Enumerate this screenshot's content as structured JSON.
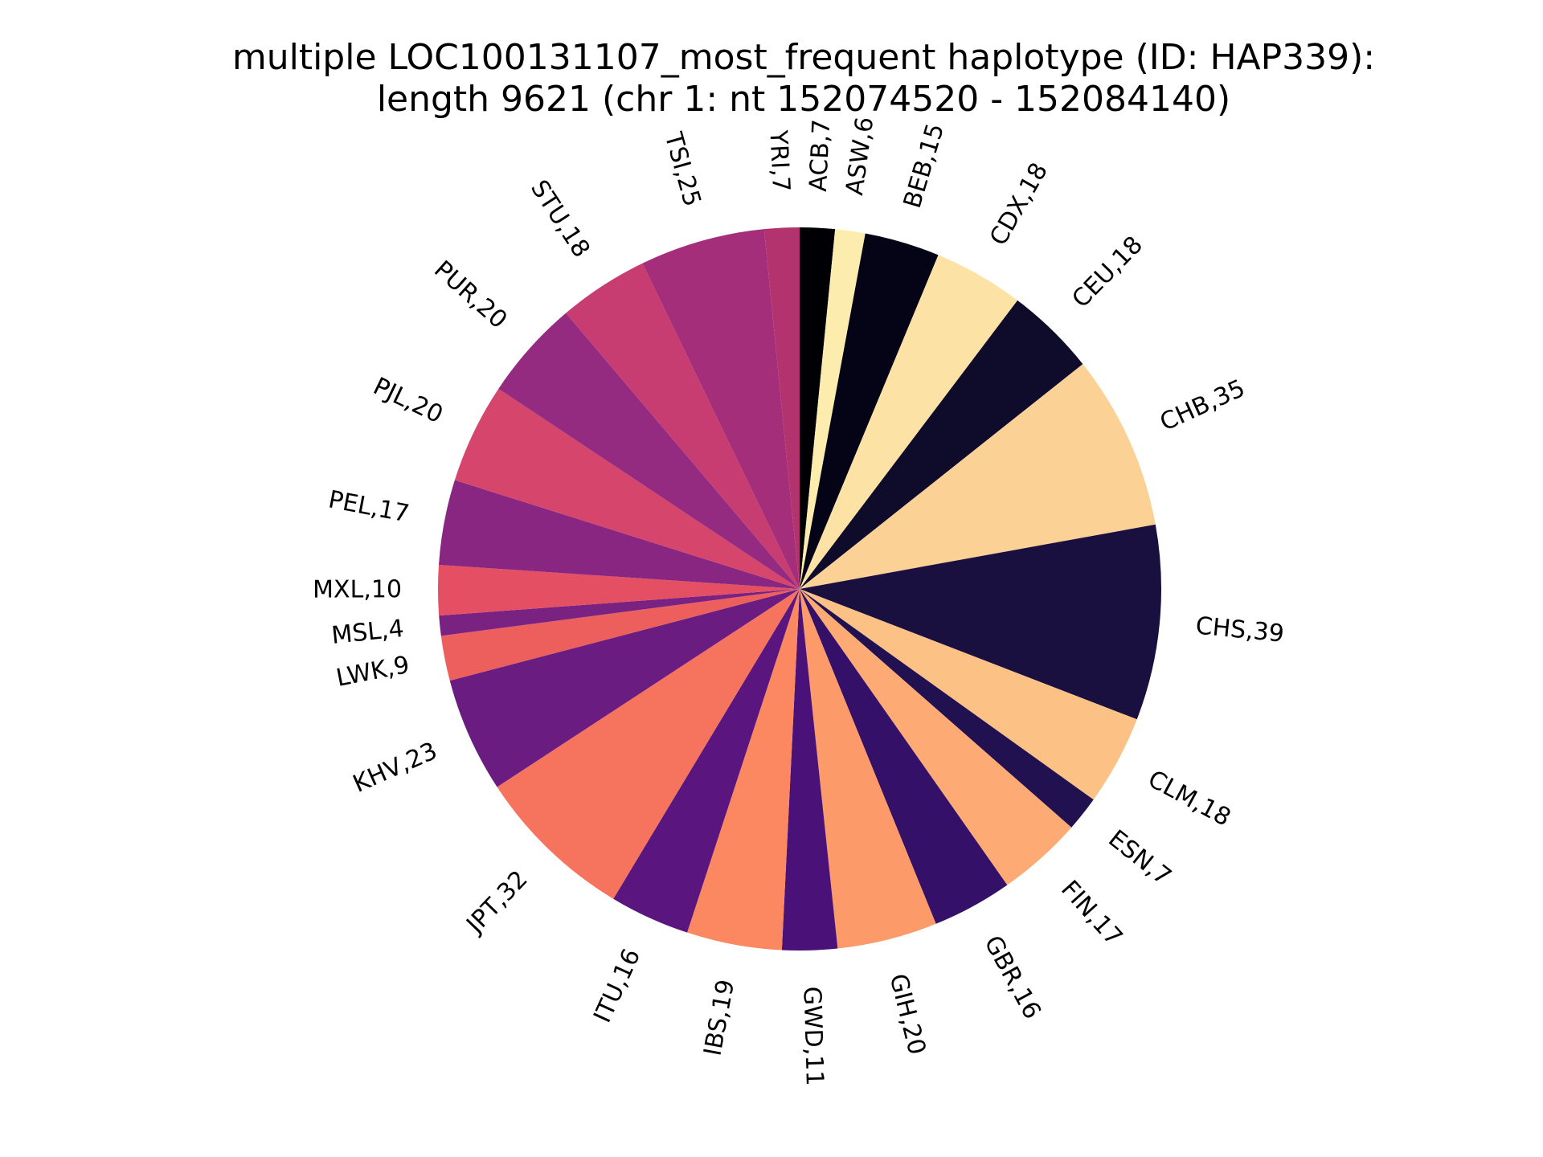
{
  "chart_data": {
    "type": "pie",
    "title_lines": [
      "multiple LOC100131107_most_frequent haplotype (ID: HAP339):",
      "length 9621 (chr 1: nt 152074520 - 152084140)"
    ],
    "start_direction": "top",
    "order": "clockwise",
    "slices": [
      {
        "label": "ACB,7",
        "name": "ACB",
        "value": 7,
        "color": "#000004"
      },
      {
        "label": "ASW,6",
        "name": "ASW",
        "value": 6,
        "color": "#fcecad"
      },
      {
        "label": "BEB,15",
        "name": "BEB",
        "value": 15,
        "color": "#050417"
      },
      {
        "label": "CDX,18",
        "name": "CDX",
        "value": 18,
        "color": "#fde2a6"
      },
      {
        "label": "CEU,18",
        "name": "CEU",
        "value": 18,
        "color": "#0e0b2b"
      },
      {
        "label": "CHB,35",
        "name": "CHB",
        "value": 35,
        "color": "#fcd195"
      },
      {
        "label": "CHS,39",
        "name": "CHS",
        "value": 39,
        "color": "#1a1040"
      },
      {
        "label": "CLM,18",
        "name": "CLM",
        "value": 18,
        "color": "#fcc185"
      },
      {
        "label": "ESN,7",
        "name": "ESN",
        "value": 7,
        "color": "#221150"
      },
      {
        "label": "FIN,17",
        "name": "FIN",
        "value": 17,
        "color": "#fdaa75"
      },
      {
        "label": "GBR,16",
        "name": "GBR",
        "value": 16,
        "color": "#351068"
      },
      {
        "label": "GIH,20",
        "name": "GIH",
        "value": 20,
        "color": "#fd9a69"
      },
      {
        "label": "GWD,11",
        "name": "GWD",
        "value": 11,
        "color": "#4a1279"
      },
      {
        "label": "IBS,19",
        "name": "IBS",
        "value": 19,
        "color": "#fb8861"
      },
      {
        "label": "ITU,16",
        "name": "ITU",
        "value": 16,
        "color": "#5a167e"
      },
      {
        "label": "JPT,32",
        "name": "JPT",
        "value": 32,
        "color": "#f6735d"
      },
      {
        "label": "KHV,23",
        "name": "KHV",
        "value": 23,
        "color": "#6a1c81"
      },
      {
        "label": "LWK,9",
        "name": "LWK",
        "value": 9,
        "color": "#ed5f5c"
      },
      {
        "label": "MSL,4",
        "name": "MSL",
        "value": 4,
        "color": "#7a2282"
      },
      {
        "label": "MXL,10",
        "name": "MXL",
        "value": 10,
        "color": "#e44f64"
      },
      {
        "label": "PEL,17",
        "name": "PEL",
        "value": 17,
        "color": "#882681"
      },
      {
        "label": "PJL,20",
        "name": "PJL",
        "value": 20,
        "color": "#d6456c"
      },
      {
        "label": "PUR,20",
        "name": "PUR",
        "value": 20,
        "color": "#952b80"
      },
      {
        "label": "STU,18",
        "name": "STU",
        "value": 18,
        "color": "#c83d71"
      },
      {
        "label": "TSI,25",
        "name": "TSI",
        "value": 25,
        "color": "#a52e7b"
      },
      {
        "label": "YRI,7",
        "name": "YRI",
        "value": 7,
        "color": "#b3336f"
      }
    ]
  }
}
